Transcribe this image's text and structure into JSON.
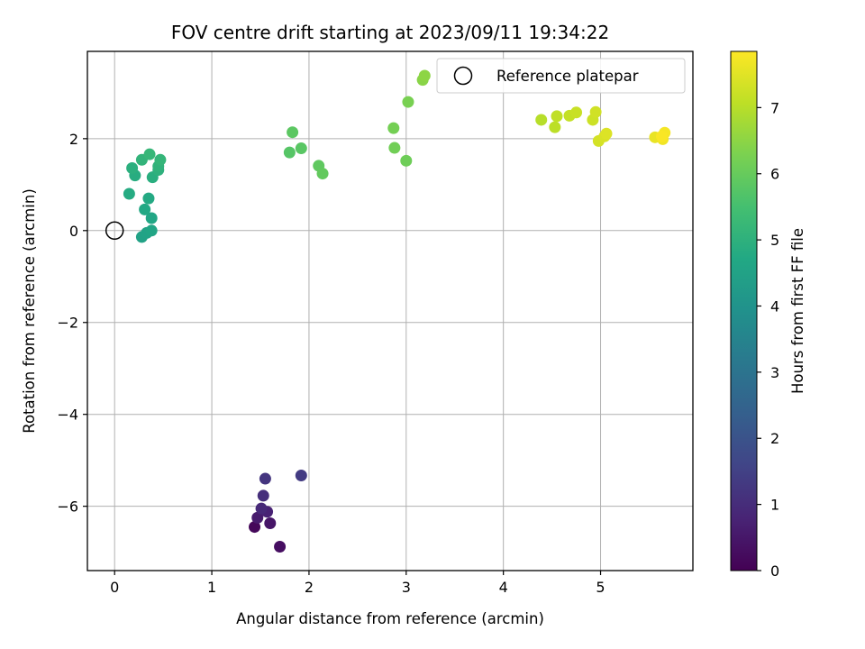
{
  "chart_data": {
    "type": "scatter",
    "title": "FOV centre drift starting at 2023/09/11 19:34:22",
    "xlabel": "Angular distance from reference (arcmin)",
    "ylabel": "Rotation from reference (arcmin)",
    "xlim": [
      -0.28,
      5.95
    ],
    "ylim": [
      -7.4,
      3.9
    ],
    "xticks": [
      0,
      1,
      2,
      3,
      4,
      5
    ],
    "xtick_labels": [
      "0",
      "1",
      "2",
      "3",
      "4",
      "5"
    ],
    "yticks": [
      2,
      0,
      -2,
      -4,
      -6
    ],
    "ytick_labels": [
      "2",
      "0",
      "−2",
      "−4",
      "−6"
    ],
    "grid": true,
    "legend": {
      "placement": "upper-right",
      "entries": [
        "Reference platepar"
      ]
    },
    "reference_point": {
      "x": 0,
      "y": 0
    },
    "colorbar": {
      "label": "Hours from first FF file",
      "min": 0,
      "max": 7.85,
      "ticks": [
        0,
        1,
        2,
        3,
        4,
        5,
        6,
        7
      ],
      "tick_labels": [
        "0",
        "1",
        "2",
        "3",
        "4",
        "5",
        "6",
        "7"
      ],
      "colormap": "viridis"
    },
    "points": [
      {
        "x": 1.44,
        "y": -6.45,
        "t": 0.15
      },
      {
        "x": 1.7,
        "y": -6.88,
        "t": 0.3
      },
      {
        "x": 1.6,
        "y": -6.37,
        "t": 0.45
      },
      {
        "x": 1.47,
        "y": -6.25,
        "t": 0.6
      },
      {
        "x": 1.57,
        "y": -6.12,
        "t": 0.75
      },
      {
        "x": 1.51,
        "y": -6.05,
        "t": 0.9
      },
      {
        "x": 1.53,
        "y": -5.77,
        "t": 1.05
      },
      {
        "x": 1.55,
        "y": -5.4,
        "t": 1.2
      },
      {
        "x": 1.92,
        "y": -5.33,
        "t": 1.35
      },
      {
        "x": 0.28,
        "y": -0.14,
        "t": 4.5
      },
      {
        "x": 0.33,
        "y": -0.05,
        "t": 4.55
      },
      {
        "x": 0.38,
        "y": 0.0,
        "t": 4.6
      },
      {
        "x": 0.38,
        "y": 0.27,
        "t": 4.65
      },
      {
        "x": 0.31,
        "y": 0.46,
        "t": 4.7
      },
      {
        "x": 0.35,
        "y": 0.7,
        "t": 4.75
      },
      {
        "x": 0.15,
        "y": 0.8,
        "t": 4.8
      },
      {
        "x": 0.21,
        "y": 1.2,
        "t": 4.85
      },
      {
        "x": 0.39,
        "y": 1.16,
        "t": 4.9
      },
      {
        "x": 0.18,
        "y": 1.36,
        "t": 4.95
      },
      {
        "x": 0.45,
        "y": 1.32,
        "t": 5.0
      },
      {
        "x": 0.45,
        "y": 1.4,
        "t": 5.05
      },
      {
        "x": 0.28,
        "y": 1.54,
        "t": 5.1
      },
      {
        "x": 0.47,
        "y": 1.54,
        "t": 5.15
      },
      {
        "x": 0.36,
        "y": 1.66,
        "t": 5.2
      },
      {
        "x": 1.8,
        "y": 1.7,
        "t": 5.75
      },
      {
        "x": 1.92,
        "y": 1.79,
        "t": 5.8
      },
      {
        "x": 1.83,
        "y": 2.14,
        "t": 5.85
      },
      {
        "x": 2.1,
        "y": 1.41,
        "t": 5.9
      },
      {
        "x": 2.14,
        "y": 1.24,
        "t": 5.95
      },
      {
        "x": 3.0,
        "y": 1.52,
        "t": 6.1
      },
      {
        "x": 2.88,
        "y": 1.8,
        "t": 6.15
      },
      {
        "x": 2.87,
        "y": 2.23,
        "t": 6.2
      },
      {
        "x": 3.02,
        "y": 2.8,
        "t": 6.25
      },
      {
        "x": 3.17,
        "y": 3.28,
        "t": 6.45
      },
      {
        "x": 3.19,
        "y": 3.37,
        "t": 6.5
      },
      {
        "x": 4.39,
        "y": 2.41,
        "t": 7.0
      },
      {
        "x": 4.53,
        "y": 2.25,
        "t": 7.05
      },
      {
        "x": 4.55,
        "y": 2.49,
        "t": 7.1
      },
      {
        "x": 4.68,
        "y": 2.5,
        "t": 7.15
      },
      {
        "x": 4.75,
        "y": 2.57,
        "t": 7.2
      },
      {
        "x": 4.92,
        "y": 2.41,
        "t": 7.25
      },
      {
        "x": 4.95,
        "y": 2.58,
        "t": 7.3
      },
      {
        "x": 4.98,
        "y": 1.95,
        "t": 7.35
      },
      {
        "x": 5.04,
        "y": 2.05,
        "t": 7.4
      },
      {
        "x": 5.06,
        "y": 2.11,
        "t": 7.45
      },
      {
        "x": 5.56,
        "y": 2.03,
        "t": 7.6
      },
      {
        "x": 5.64,
        "y": 1.99,
        "t": 7.7
      },
      {
        "x": 5.66,
        "y": 2.13,
        "t": 7.75
      },
      {
        "x": 5.63,
        "y": 2.05,
        "t": 7.8
      }
    ]
  }
}
